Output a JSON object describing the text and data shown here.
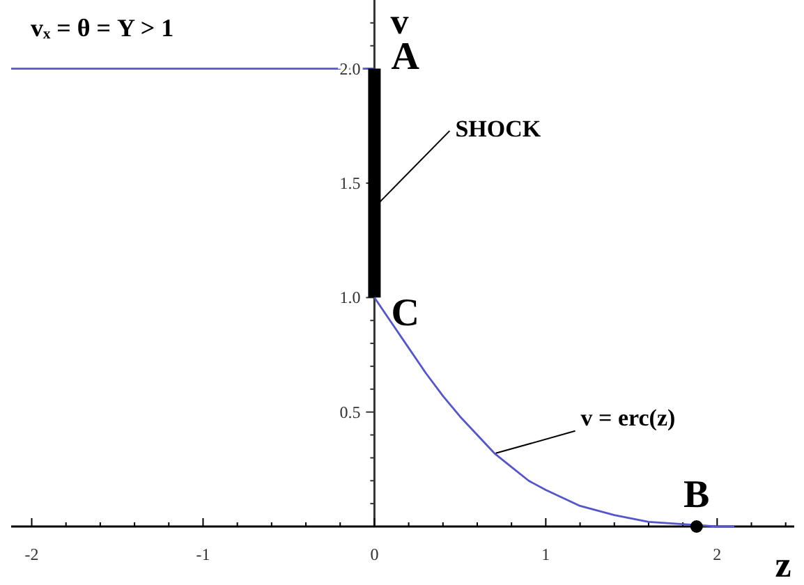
{
  "chart_data": {
    "type": "line",
    "xlabel": "z",
    "ylabel": "v",
    "xlim": [
      -2.12,
      2.45
    ],
    "ylim": [
      0,
      2.3
    ],
    "xticks": [
      {
        "value": -2,
        "label": "-2"
      },
      {
        "value": -1.8,
        "label": null
      },
      {
        "value": -1.6,
        "label": null
      },
      {
        "value": -1.4,
        "label": null
      },
      {
        "value": -1.2,
        "label": null
      },
      {
        "value": -1,
        "label": "-1"
      },
      {
        "value": -0.8,
        "label": null
      },
      {
        "value": -0.6,
        "label": null
      },
      {
        "value": -0.4,
        "label": null
      },
      {
        "value": -0.2,
        "label": null
      },
      0,
      {
        "value": 0.2,
        "label": null
      },
      {
        "value": 0.4,
        "label": null
      },
      {
        "value": 0.6,
        "label": null
      },
      {
        "value": 0.8,
        "label": null
      },
      1,
      {
        "value": 1.2,
        "label": null
      },
      {
        "value": 1.4,
        "label": null
      },
      {
        "value": 1.6,
        "label": null
      },
      {
        "value": 1.8,
        "label": null
      },
      2,
      {
        "value": 2.2,
        "label": null
      },
      {
        "value": 2.4,
        "label": null
      }
    ],
    "yticks": [
      {
        "value": 0.1,
        "label": null
      },
      {
        "value": 0.2,
        "label": null
      },
      {
        "value": 0.3,
        "label": null
      },
      {
        "value": 0.4,
        "label": null
      },
      0.5,
      {
        "value": 0.6,
        "label": null
      },
      {
        "value": 0.7,
        "label": null
      },
      {
        "value": 0.8,
        "label": null
      },
      {
        "value": 0.9,
        "label": null
      },
      {
        "value": 1,
        "label": "1.0"
      },
      {
        "value": 1.1,
        "label": null
      },
      {
        "value": 1.2,
        "label": null
      },
      {
        "value": 1.3,
        "label": null
      },
      {
        "value": 1.4,
        "label": null
      },
      1.5,
      {
        "value": 1.6,
        "label": null
      },
      {
        "value": 1.7,
        "label": null
      },
      {
        "value": 1.8,
        "label": null
      },
      {
        "value": 1.9,
        "label": null
      },
      {
        "value": 2,
        "label": "2.0"
      },
      {
        "value": 2.1,
        "label": null
      },
      {
        "value": 2.2,
        "label": null
      }
    ],
    "series": [
      {
        "color": "#5555cc",
        "x": [
          -2.12,
          0
        ],
        "values": [
          2,
          2
        ]
      },
      {
        "color": "#000000",
        "x": [
          0,
          0
        ],
        "values": [
          1,
          2
        ]
      },
      {
        "color": "#5555cc",
        "x": [
          0,
          0.1,
          0.2,
          0.3,
          0.4,
          0.5,
          0.6,
          0.7,
          0.8,
          0.9,
          1,
          1.2,
          1.4,
          1.6,
          1.8,
          2,
          2.1
        ],
        "values": [
          1,
          0.89,
          0.78,
          0.67,
          0.57,
          0.48,
          0.4,
          0.32,
          0.26,
          0.2,
          0.16,
          0.09,
          0.05,
          0.02,
          0.01,
          0,
          0
        ]
      },
      {
        "type": "scatter",
        "color": "#000000",
        "marker": "circle",
        "x": [
          1.88
        ],
        "values": [
          0
        ]
      }
    ],
    "annotations": [
      "vₓ = θ = Y > 1",
      {
        "text": "A",
        "x": 0,
        "y": 2
      },
      {
        "text": "C",
        "x": 0,
        "y": 1
      },
      {
        "text": "SHOCK",
        "x": 0,
        "y": 1.4
      },
      {
        "text": "v = erc(z)",
        "x": 0.7,
        "y": 0.32
      },
      {
        "text": "B",
        "x": 1.88,
        "y": 0
      }
    ],
    "grid": false
  }
}
